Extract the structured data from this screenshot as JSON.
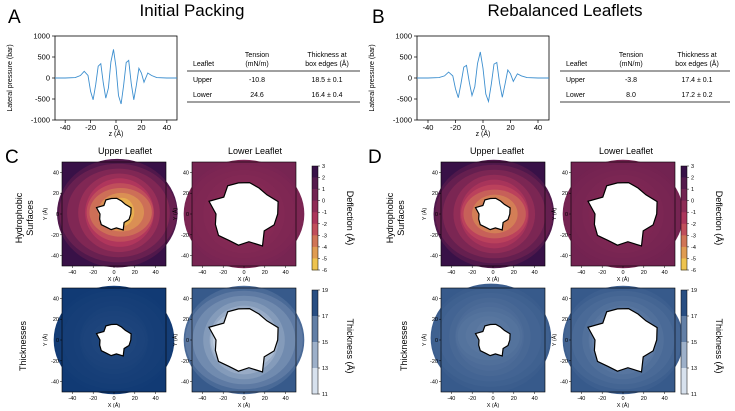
{
  "panel_letters": {
    "a": "A",
    "b": "B",
    "c": "C",
    "d": "D"
  },
  "titles": {
    "a": "Initial Packing",
    "b": "Rebalanced Leaflets"
  },
  "tables": {
    "a": {
      "headers": [
        "Leaflet",
        "Tension",
        "(mN/m)",
        "Thickness at",
        "box edges (Å)"
      ],
      "rows": [
        [
          "Upper",
          "-10.8",
          "18.5 ± 0.1"
        ],
        [
          "Lower",
          "24.6",
          "16.4 ± 0.4"
        ]
      ]
    },
    "b": {
      "headers": [
        "Leaflet",
        "Tension",
        "(mN/m)",
        "Thickness at",
        "box edges (Å)"
      ],
      "rows": [
        [
          "Upper",
          "-3.8",
          "17.4 ± 0.1"
        ],
        [
          "Lower",
          "8.0",
          "17.2 ± 0.2"
        ]
      ]
    }
  },
  "labels": {
    "upper_leaflet": "Upper Leaflet",
    "lower_leaflet": "Lower Leaflet",
    "row1": [
      "Hydrophobic",
      "Surfaces"
    ],
    "row2": "Thicknesses",
    "deflection_cb": "Deflection (Å)",
    "thickness_cb": "Thickness (Å)"
  },
  "colors": {
    "line": "#3d8fcf",
    "deflection_dark": "#2a0c45",
    "deflection_mid": "#b8395d",
    "deflection_light": "#f6d64c",
    "thickness_dark": "#0b3570",
    "thickness_light": "#f4f9ff"
  },
  "chart_data": [
    {
      "id": "a_pressure",
      "type": "line",
      "xlabel": "z (Å)",
      "ylabel": "Lateral pressure (bar)",
      "xlim": [
        -48,
        48
      ],
      "ylim": [
        -1000,
        1000
      ],
      "xticks": [
        -40,
        -20,
        0,
        20,
        40
      ],
      "yticks": [
        -1000,
        -500,
        0,
        500,
        1000
      ],
      "x": [
        -48,
        -40,
        -32,
        -28,
        -25,
        -22,
        -20,
        -18,
        -16,
        -14,
        -12,
        -10,
        -8,
        -6,
        -4,
        -2,
        0,
        2,
        4,
        6,
        8,
        10,
        12,
        14,
        16,
        18,
        20,
        22,
        25,
        28,
        32,
        40,
        48
      ],
      "y": [
        0,
        0,
        10,
        60,
        160,
        60,
        -320,
        -520,
        -160,
        280,
        340,
        -120,
        -480,
        -240,
        380,
        680,
        260,
        -420,
        -620,
        -180,
        370,
        420,
        -140,
        -520,
        -180,
        230,
        120,
        -100,
        120,
        60,
        10,
        0,
        0
      ]
    },
    {
      "id": "b_pressure",
      "type": "line",
      "xlabel": "z (Å)",
      "ylabel": "Lateral pressure (bar)",
      "xlim": [
        -48,
        48
      ],
      "ylim": [
        -1000,
        1000
      ],
      "xticks": [
        -40,
        -20,
        0,
        20,
        40
      ],
      "yticks": [
        -1000,
        -500,
        0,
        500,
        1000
      ],
      "x": [
        -48,
        -40,
        -32,
        -28,
        -25,
        -22,
        -20,
        -18,
        -16,
        -14,
        -12,
        -10,
        -8,
        -6,
        -4,
        -2,
        0,
        2,
        4,
        6,
        8,
        10,
        12,
        14,
        16,
        18,
        20,
        22,
        25,
        28,
        32,
        40,
        48
      ],
      "y": [
        0,
        0,
        10,
        50,
        140,
        50,
        -260,
        -470,
        -130,
        260,
        300,
        -100,
        -420,
        -210,
        340,
        620,
        230,
        -380,
        -560,
        -150,
        330,
        370,
        -110,
        -460,
        -150,
        190,
        100,
        -80,
        100,
        50,
        10,
        0,
        0
      ]
    },
    {
      "id": "c_upper_surface",
      "type": "heatmap",
      "field": "deflection",
      "xlabel": "X (Å)",
      "ylabel": "Y (Å)",
      "xlim": [
        -50,
        50
      ],
      "ylim": [
        -50,
        50
      ],
      "xticks": [
        -40,
        -20,
        0,
        20,
        40
      ],
      "yticks": [
        -40,
        -20,
        0,
        20,
        40
      ],
      "peak_center": [
        8,
        2
      ],
      "peak_value": -5,
      "edge_value": 2.5
    },
    {
      "id": "c_lower_surface",
      "type": "heatmap",
      "field": "deflection",
      "xlabel": "X (Å)",
      "ylabel": "Y (Å)",
      "xlim": [
        -50,
        50
      ],
      "ylim": [
        -50,
        50
      ],
      "xticks": [
        -40,
        -20,
        0,
        20,
        40
      ],
      "yticks": [
        -40,
        -20,
        0,
        20,
        40
      ],
      "peak_center": [
        0,
        0
      ],
      "peak_value": -0.5,
      "edge_value": 0.3
    },
    {
      "id": "c_upper_thickness",
      "type": "heatmap",
      "field": "thickness",
      "xlabel": "X (Å)",
      "ylabel": "Y (Å)",
      "xlim": [
        -50,
        50
      ],
      "ylim": [
        -50,
        50
      ],
      "xticks": [
        -40,
        -20,
        0,
        20,
        40
      ],
      "yticks": [
        -40,
        -20,
        0,
        20,
        40
      ],
      "peak_center": [
        0,
        0
      ],
      "peak_value": 18.3,
      "edge_value": 18.8
    },
    {
      "id": "c_lower_thickness",
      "type": "heatmap",
      "field": "thickness",
      "xlabel": "X (Å)",
      "ylabel": "Y (Å)",
      "xlim": [
        -50,
        50
      ],
      "ylim": [
        -50,
        50
      ],
      "xticks": [
        -40,
        -20,
        0,
        20,
        40
      ],
      "yticks": [
        -40,
        -20,
        0,
        20,
        40
      ],
      "peak_center": [
        0,
        0
      ],
      "peak_value": 11.5,
      "edge_value": 17.5
    },
    {
      "id": "d_upper_surface",
      "type": "heatmap",
      "field": "deflection",
      "xlabel": "X (Å)",
      "ylabel": "Y (Å)",
      "xlim": [
        -50,
        50
      ],
      "ylim": [
        -50,
        50
      ],
      "xticks": [
        -40,
        -20,
        0,
        20,
        40
      ],
      "yticks": [
        -40,
        -20,
        0,
        20,
        40
      ],
      "peak_center": [
        2,
        0
      ],
      "peak_value": -4.5,
      "edge_value": 2.5
    },
    {
      "id": "d_lower_surface",
      "type": "heatmap",
      "field": "deflection",
      "xlabel": "X (Å)",
      "ylabel": "Y (Å)",
      "xlim": [
        -50,
        50
      ],
      "ylim": [
        -50,
        50
      ],
      "xticks": [
        -40,
        -20,
        0,
        20,
        40
      ],
      "yticks": [
        -40,
        -20,
        0,
        20,
        40
      ],
      "peak_center": [
        0,
        0
      ],
      "peak_value": -0.2,
      "edge_value": 0.5
    },
    {
      "id": "d_upper_thickness",
      "type": "heatmap",
      "field": "thickness",
      "xlabel": "X (Å)",
      "ylabel": "Y (Å)",
      "xlim": [
        -50,
        50
      ],
      "ylim": [
        -50,
        50
      ],
      "xticks": [
        -40,
        -20,
        0,
        20,
        40
      ],
      "yticks": [
        -40,
        -20,
        0,
        20,
        40
      ],
      "peak_center": [
        -5,
        5
      ],
      "peak_value": 16.2,
      "edge_value": 17.5
    },
    {
      "id": "d_lower_thickness",
      "type": "heatmap",
      "field": "thickness",
      "xlabel": "X (Å)",
      "ylabel": "Y (Å)",
      "xlim": [
        -50,
        50
      ],
      "ylim": [
        -50,
        50
      ],
      "xticks": [
        -40,
        -20,
        0,
        20,
        40
      ],
      "yticks": [
        -40,
        -20,
        0,
        20,
        40
      ],
      "peak_center": [
        0,
        0
      ],
      "peak_value": 15.5,
      "edge_value": 17.5
    },
    {
      "id": "deflection_colorbar",
      "type": "colorbar",
      "label": "Deflection (Å)",
      "range": [
        -6,
        3
      ],
      "ticks": [
        3,
        2,
        1,
        0,
        -1,
        -2,
        -3,
        -4,
        -5,
        -6
      ]
    },
    {
      "id": "thickness_colorbar",
      "type": "colorbar",
      "label": "Thickness (Å)",
      "range": [
        11,
        19
      ],
      "ticks": [
        19,
        17,
        15,
        13,
        11
      ]
    }
  ]
}
